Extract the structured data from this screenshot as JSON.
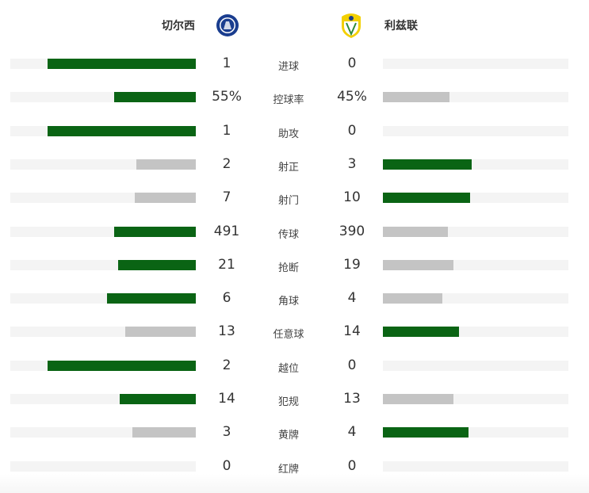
{
  "home": {
    "name": "切尔西",
    "logo": "chelsea-crest-icon"
  },
  "away": {
    "name": "利兹联",
    "logo": "leeds-crest-icon"
  },
  "colors": {
    "leader": "#0a6414",
    "trailer": "#c4c4c4",
    "track": "#f4f4f4"
  },
  "stats": [
    {
      "label": "进球",
      "home": "1",
      "away": "0",
      "home_fill": 0.8,
      "away_fill": 0,
      "leader": "home"
    },
    {
      "label": "控球率",
      "home": "55%",
      "away": "45%",
      "home_fill": 0.44,
      "away_fill": 0.36,
      "leader": "home"
    },
    {
      "label": "助攻",
      "home": "1",
      "away": "0",
      "home_fill": 0.8,
      "away_fill": 0,
      "leader": "home"
    },
    {
      "label": "射正",
      "home": "2",
      "away": "3",
      "home_fill": 0.32,
      "away_fill": 0.48,
      "leader": "away"
    },
    {
      "label": "射门",
      "home": "7",
      "away": "10",
      "home_fill": 0.33,
      "away_fill": 0.47,
      "leader": "away"
    },
    {
      "label": "传球",
      "home": "491",
      "away": "390",
      "home_fill": 0.44,
      "away_fill": 0.35,
      "leader": "home"
    },
    {
      "label": "抢断",
      "home": "21",
      "away": "19",
      "home_fill": 0.42,
      "away_fill": 0.38,
      "leader": "home"
    },
    {
      "label": "角球",
      "home": "6",
      "away": "4",
      "home_fill": 0.48,
      "away_fill": 0.32,
      "leader": "home"
    },
    {
      "label": "任意球",
      "home": "13",
      "away": "14",
      "home_fill": 0.38,
      "away_fill": 0.41,
      "leader": "away"
    },
    {
      "label": "越位",
      "home": "2",
      "away": "0",
      "home_fill": 0.8,
      "away_fill": 0,
      "leader": "home"
    },
    {
      "label": "犯规",
      "home": "14",
      "away": "13",
      "home_fill": 0.41,
      "away_fill": 0.38,
      "leader": "home"
    },
    {
      "label": "黄牌",
      "home": "3",
      "away": "4",
      "home_fill": 0.34,
      "away_fill": 0.46,
      "leader": "away"
    },
    {
      "label": "红牌",
      "home": "0",
      "away": "0",
      "home_fill": 0,
      "away_fill": 0,
      "leader": "none"
    }
  ]
}
